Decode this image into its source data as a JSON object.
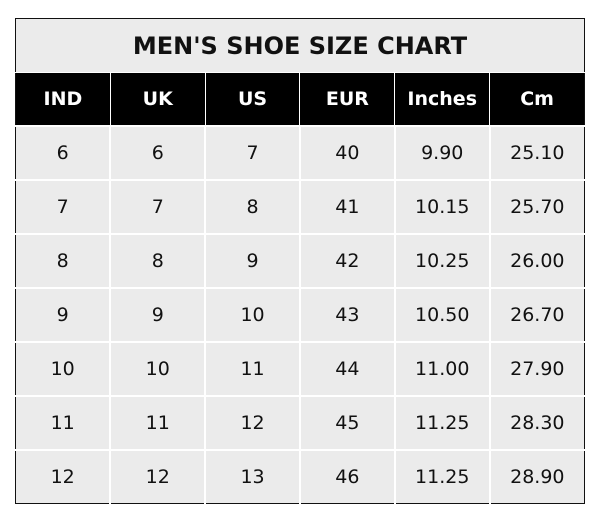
{
  "chart_data": {
    "type": "table",
    "title": "MEN'S SHOE SIZE CHART",
    "columns": [
      "IND",
      "UK",
      "US",
      "EUR",
      "Inches",
      "Cm"
    ],
    "rows": [
      [
        "6",
        "6",
        "7",
        "40",
        "9.90",
        "25.10"
      ],
      [
        "7",
        "7",
        "8",
        "41",
        "10.15",
        "25.70"
      ],
      [
        "8",
        "8",
        "9",
        "42",
        "10.25",
        "26.00"
      ],
      [
        "9",
        "9",
        "10",
        "43",
        "10.50",
        "26.70"
      ],
      [
        "10",
        "10",
        "11",
        "44",
        "11.00",
        "27.90"
      ],
      [
        "11",
        "11",
        "12",
        "45",
        "11.25",
        "28.30"
      ],
      [
        "12",
        "12",
        "13",
        "46",
        "11.25",
        "28.90"
      ]
    ]
  }
}
